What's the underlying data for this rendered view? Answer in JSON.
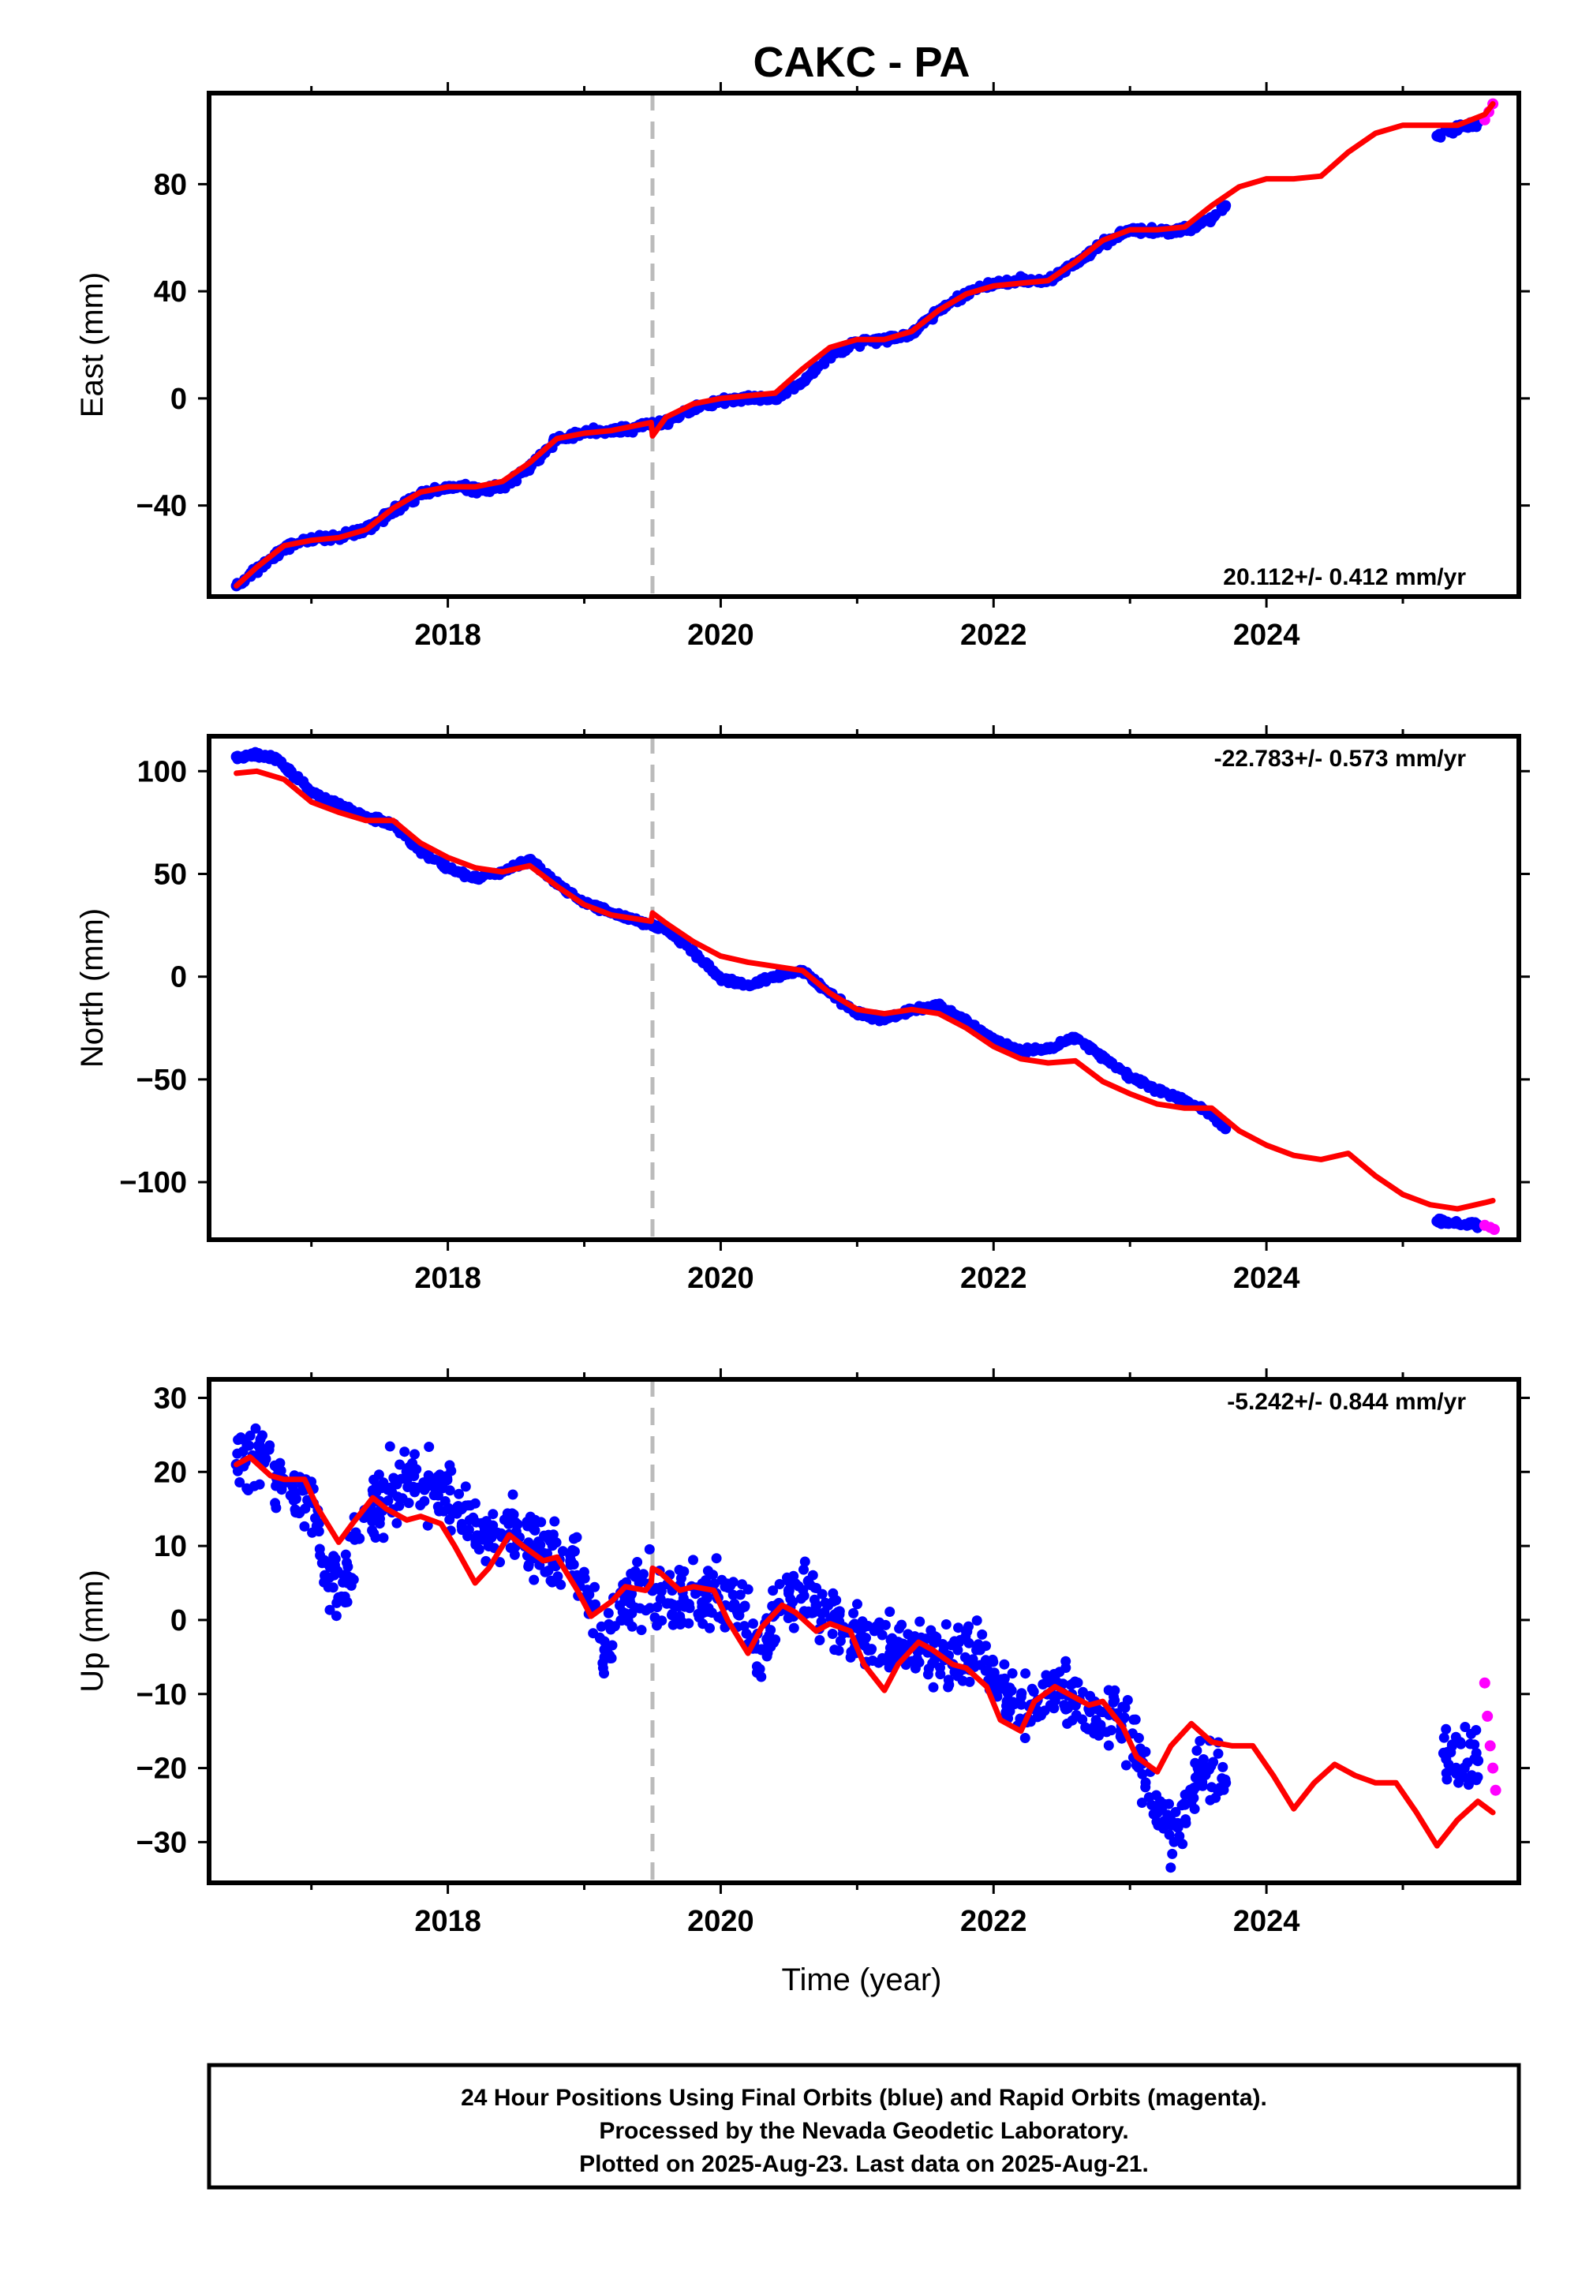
{
  "title": "CAKC - PA",
  "xlabel": "Time (year)",
  "footer": {
    "line1": "24 Hour Positions Using Final Orbits (blue) and Rapid Orbits (magenta).",
    "line2": "Processed by the Nevada Geodetic Laboratory.",
    "line3": "Plotted on 2025-Aug-23. Last data on 2025-Aug-21."
  },
  "colors": {
    "final": "#0000ff",
    "rapid": "#ff00ff",
    "model": "#ff0000",
    "event_line": "#bbbbbb"
  },
  "chart_data": [
    {
      "type": "scatter",
      "component": "east",
      "ylabel": "East (mm)",
      "xlim": [
        2016.25,
        2025.85
      ],
      "ylim": [
        -74,
        114
      ],
      "xticks": [
        2018,
        2020,
        2022,
        2024
      ],
      "yticks": [
        -40,
        0,
        40,
        80
      ],
      "rate_label": "20.112+/- 0.412 mm/yr",
      "rate_position": "bottom-right",
      "event_line_x": 2019.5,
      "series": [
        {
          "role": "final-orbits",
          "x": [
            2016.45,
            2016.6,
            2016.8,
            2017.0,
            2017.2,
            2017.4,
            2017.6,
            2017.8,
            2018.0,
            2018.2,
            2018.4,
            2018.6,
            2018.8,
            2019.0,
            2019.2,
            2019.49,
            2019.6,
            2019.8,
            2020.0,
            2020.2,
            2020.4,
            2020.6,
            2020.8,
            2021.0,
            2021.2,
            2021.4,
            2021.6,
            2021.8,
            2022.0,
            2022.2,
            2022.4,
            2022.6,
            2022.8,
            2023.0,
            2023.2,
            2023.4,
            2023.6,
            2023.7,
            2025.25,
            2025.4,
            2025.55
          ],
          "y": [
            -70,
            -64,
            -56,
            -52,
            -52,
            -49,
            -42,
            -36,
            -33,
            -34,
            -33,
            -26,
            -15,
            -13,
            -12,
            -10,
            -9,
            -4,
            -1,
            0,
            0,
            6,
            16,
            21,
            22,
            24,
            33,
            39,
            43,
            44,
            44,
            50,
            58,
            63,
            62,
            63,
            67,
            72,
            98,
            101,
            103
          ]
        },
        {
          "role": "rapid-orbits",
          "x": [
            2025.6,
            2025.63,
            2025.66
          ],
          "y": [
            104,
            107,
            110
          ]
        },
        {
          "role": "model",
          "x": [
            2016.45,
            2016.6,
            2016.8,
            2017.0,
            2017.2,
            2017.4,
            2017.6,
            2017.8,
            2018.0,
            2018.2,
            2018.4,
            2018.6,
            2018.8,
            2019.0,
            2019.2,
            2019.49,
            2019.5,
            2019.6,
            2019.8,
            2020.0,
            2020.2,
            2020.4,
            2020.6,
            2020.8,
            2021.0,
            2021.2,
            2021.4,
            2021.6,
            2021.8,
            2022.0,
            2022.2,
            2022.4,
            2022.6,
            2022.8,
            2023.0,
            2023.2,
            2023.4,
            2023.6,
            2023.8,
            2024.0,
            2024.2,
            2024.4,
            2024.6,
            2024.8,
            2025.0,
            2025.2,
            2025.4,
            2025.6,
            2025.66
          ],
          "y": [
            -70,
            -63,
            -55,
            -53,
            -52,
            -49,
            -41,
            -35,
            -33,
            -33,
            -31,
            -24,
            -15,
            -13,
            -12,
            -9,
            -14,
            -7,
            -2,
            0,
            1,
            2,
            11,
            19,
            22,
            22,
            25,
            33,
            39,
            42,
            43,
            44,
            51,
            59,
            63,
            63,
            64,
            72,
            79,
            82,
            82,
            83,
            92,
            99,
            102,
            102,
            102,
            106,
            110
          ]
        }
      ]
    },
    {
      "type": "scatter",
      "component": "north",
      "ylabel": "North (mm)",
      "xlim": [
        2016.25,
        2025.85
      ],
      "ylim": [
        -128,
        117
      ],
      "xticks": [
        2018,
        2020,
        2022,
        2024
      ],
      "yticks": [
        -100,
        -50,
        0,
        50,
        100
      ],
      "rate_label": "-22.783+/- 0.573 mm/yr",
      "rate_position": "top-right",
      "event_line_x": 2019.5,
      "series": [
        {
          "role": "final-orbits",
          "x": [
            2016.45,
            2016.6,
            2016.75,
            2017.0,
            2017.2,
            2017.4,
            2017.6,
            2017.8,
            2018.0,
            2018.2,
            2018.4,
            2018.6,
            2018.8,
            2019.0,
            2019.2,
            2019.4,
            2019.6,
            2019.8,
            2020.0,
            2020.2,
            2020.4,
            2020.6,
            2020.8,
            2021.0,
            2021.2,
            2021.4,
            2021.6,
            2021.8,
            2022.0,
            2022.2,
            2022.4,
            2022.6,
            2022.8,
            2023.0,
            2023.2,
            2023.4,
            2023.6,
            2023.7,
            2025.25,
            2025.4,
            2025.55
          ],
          "y": [
            107,
            108,
            106,
            90,
            83,
            78,
            74,
            61,
            53,
            48,
            51,
            57,
            45,
            36,
            31,
            27,
            23,
            12,
            -1,
            -4,
            0,
            3,
            -8,
            -18,
            -21,
            -16,
            -14,
            -21,
            -31,
            -36,
            -35,
            -30,
            -39,
            -49,
            -55,
            -60,
            -67,
            -74,
            -119,
            -120,
            -121
          ]
        },
        {
          "role": "rapid-orbits",
          "x": [
            2025.6,
            2025.64,
            2025.67
          ],
          "y": [
            -121,
            -122,
            -123
          ]
        },
        {
          "role": "model",
          "x": [
            2016.45,
            2016.6,
            2016.8,
            2017.0,
            2017.2,
            2017.4,
            2017.6,
            2017.8,
            2018.0,
            2018.2,
            2018.4,
            2018.6,
            2018.8,
            2019.0,
            2019.2,
            2019.49,
            2019.5,
            2019.6,
            2019.8,
            2020.0,
            2020.2,
            2020.4,
            2020.6,
            2020.8,
            2021.0,
            2021.2,
            2021.4,
            2021.6,
            2021.8,
            2022.0,
            2022.2,
            2022.4,
            2022.6,
            2022.8,
            2023.0,
            2023.2,
            2023.4,
            2023.6,
            2023.8,
            2024.0,
            2024.2,
            2024.4,
            2024.6,
            2024.8,
            2025.0,
            2025.2,
            2025.4,
            2025.6,
            2025.66
          ],
          "y": [
            99,
            100,
            96,
            85,
            80,
            76,
            76,
            65,
            58,
            53,
            51,
            54,
            44,
            35,
            30,
            27,
            31,
            26,
            17,
            10,
            7,
            5,
            3,
            -8,
            -16,
            -18,
            -16,
            -18,
            -25,
            -34,
            -40,
            -42,
            -41,
            -51,
            -57,
            -62,
            -64,
            -64,
            -75,
            -82,
            -87,
            -89,
            -86,
            -97,
            -106,
            -111,
            -113,
            -110,
            -109
          ]
        }
      ]
    },
    {
      "type": "scatter",
      "component": "up",
      "ylabel": "Up (mm)",
      "xlim": [
        2016.25,
        2025.85
      ],
      "ylim": [
        -35.5,
        32.5
      ],
      "xticks": [
        2018,
        2020,
        2022,
        2024
      ],
      "yticks": [
        -30,
        -20,
        -10,
        0,
        10,
        20,
        30
      ],
      "rate_label": "-5.242+/- 0.844 mm/yr",
      "rate_position": "top-right",
      "event_line_x": 2019.5,
      "series": [
        {
          "role": "final-orbits",
          "x": [
            2016.45,
            2016.6,
            2016.75,
            2017.0,
            2017.1,
            2017.2,
            2017.35,
            2017.5,
            2017.7,
            2017.9,
            2018.1,
            2018.3,
            2018.5,
            2018.7,
            2018.9,
            2019.05,
            2019.15,
            2019.3,
            2019.5,
            2019.7,
            2019.9,
            2020.1,
            2020.3,
            2020.5,
            2020.7,
            2020.9,
            2021.1,
            2021.3,
            2021.5,
            2021.7,
            2021.9,
            2022.1,
            2022.3,
            2022.5,
            2022.7,
            2022.9,
            2023.05,
            2023.2,
            2023.35,
            2023.5,
            2023.7,
            2025.3,
            2025.45,
            2025.55
          ],
          "y": [
            21,
            22,
            19,
            16,
            6,
            3,
            11,
            16,
            19,
            18,
            15,
            10,
            13,
            9,
            8,
            2,
            -4,
            3,
            4,
            2,
            3,
            2,
            -4,
            4,
            2,
            -1,
            -4,
            -3,
            -4,
            -6,
            -4,
            -11,
            -12,
            -10,
            -12,
            -13,
            -18,
            -26,
            -28,
            -20,
            -22,
            -18,
            -20,
            -19
          ]
        },
        {
          "role": "rapid-orbits",
          "x": [
            2025.6,
            2025.62,
            2025.64,
            2025.66,
            2025.68
          ],
          "y": [
            -8.5,
            -13,
            -17,
            -20,
            -23
          ]
        },
        {
          "role": "model",
          "x": [
            2016.45,
            2016.55,
            2016.7,
            2016.8,
            2016.95,
            2017.05,
            2017.2,
            2017.3,
            2017.45,
            2017.55,
            2017.7,
            2017.8,
            2017.95,
            2018.05,
            2018.2,
            2018.3,
            2018.45,
            2018.55,
            2018.7,
            2018.8,
            2018.95,
            2019.05,
            2019.2,
            2019.3,
            2019.45,
            2019.49,
            2019.5,
            2019.55,
            2019.7,
            2019.8,
            2019.95,
            2020.05,
            2020.2,
            2020.3,
            2020.45,
            2020.55,
            2020.7,
            2020.8,
            2020.95,
            2021.05,
            2021.2,
            2021.3,
            2021.45,
            2021.55,
            2021.7,
            2021.8,
            2021.95,
            2022.05,
            2022.2,
            2022.3,
            2022.45,
            2022.55,
            2022.7,
            2022.8,
            2022.95,
            2023.05,
            2023.2,
            2023.3,
            2023.45,
            2023.6,
            2023.75,
            2023.9,
            2024.05,
            2024.2,
            2024.35,
            2024.5,
            2024.65,
            2024.8,
            2024.95,
            2025.1,
            2025.25,
            2025.4,
            2025.55,
            2025.66
          ],
          "y": [
            21,
            22,
            19.5,
            19,
            19,
            15,
            10.5,
            13,
            16.5,
            15,
            13.5,
            14,
            13,
            10,
            5,
            7,
            11.5,
            10,
            8,
            8.5,
            4,
            0.5,
            2.5,
            4.5,
            4,
            5,
            7,
            6.5,
            4,
            4.5,
            4,
            0,
            -4.5,
            -1,
            2,
            1,
            -1.5,
            -0.5,
            -1.5,
            -6,
            -9.5,
            -6,
            -3,
            -4,
            -6,
            -6.5,
            -9,
            -13.5,
            -15,
            -11,
            -9,
            -10,
            -11.5,
            -11,
            -14.5,
            -18.5,
            -20.5,
            -17,
            -14,
            -16.5,
            -17,
            -17,
            -21,
            -25.5,
            -22,
            -19.5,
            -21,
            -22,
            -22,
            -26,
            -30.5,
            -27,
            -24.5,
            -26
          ]
        }
      ]
    }
  ]
}
